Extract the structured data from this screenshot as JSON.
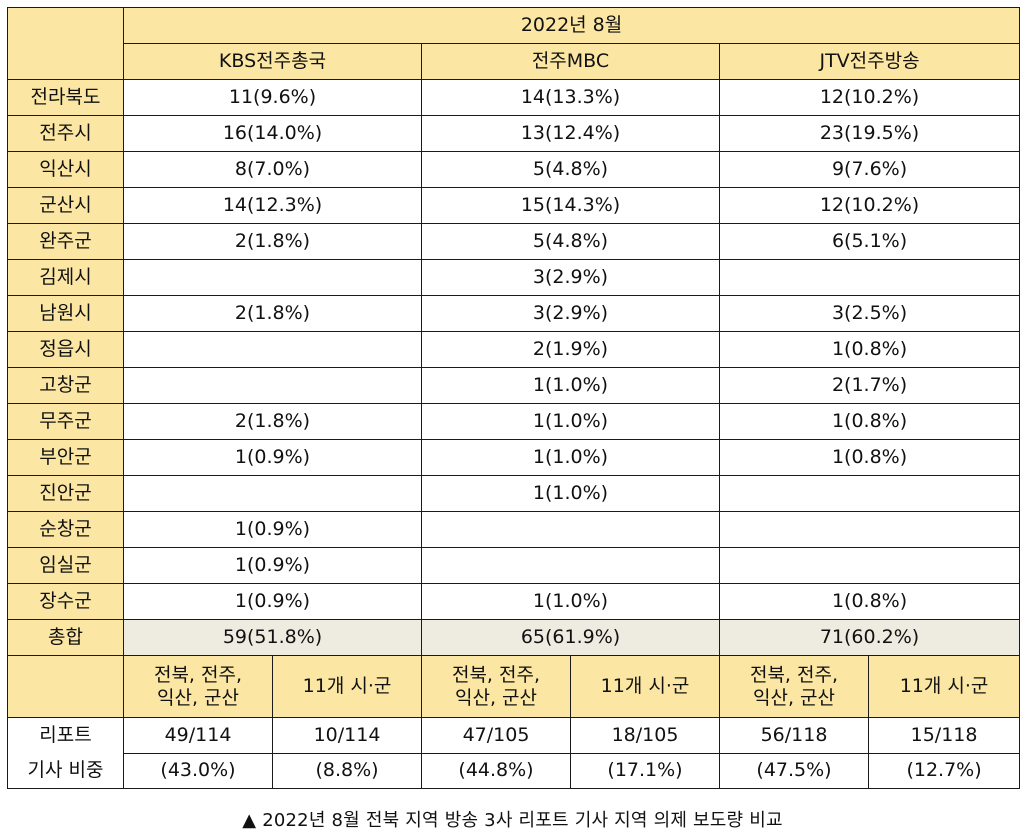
{
  "table": {
    "period": "2022년 8월",
    "broadcasters": [
      "KBS전주총국",
      "전주MBC",
      "JTV전주방송"
    ],
    "rows": [
      {
        "region": "전라북도",
        "values": [
          "11(9.6%)",
          "14(13.3%)",
          "12(10.2%)"
        ]
      },
      {
        "region": "전주시",
        "values": [
          "16(14.0%)",
          "13(12.4%)",
          "23(19.5%)"
        ]
      },
      {
        "region": "익산시",
        "values": [
          "8(7.0%)",
          "5(4.8%)",
          "9(7.6%)"
        ]
      },
      {
        "region": "군산시",
        "values": [
          "14(12.3%)",
          "15(14.3%)",
          "12(10.2%)"
        ]
      },
      {
        "region": "완주군",
        "values": [
          "2(1.8%)",
          "5(4.8%)",
          "6(5.1%)"
        ]
      },
      {
        "region": "김제시",
        "values": [
          "",
          "3(2.9%)",
          ""
        ]
      },
      {
        "region": "남원시",
        "values": [
          "2(1.8%)",
          "3(2.9%)",
          "3(2.5%)"
        ]
      },
      {
        "region": "정읍시",
        "values": [
          "",
          "2(1.9%)",
          "1(0.8%)"
        ]
      },
      {
        "region": "고창군",
        "values": [
          "",
          "1(1.0%)",
          "2(1.7%)"
        ]
      },
      {
        "region": "무주군",
        "values": [
          "2(1.8%)",
          "1(1.0%)",
          "1(0.8%)"
        ]
      },
      {
        "region": "부안군",
        "values": [
          "1(0.9%)",
          "1(1.0%)",
          "1(0.8%)"
        ]
      },
      {
        "region": "진안군",
        "values": [
          "",
          "1(1.0%)",
          ""
        ]
      },
      {
        "region": "순창군",
        "values": [
          "1(0.9%)",
          "",
          ""
        ]
      },
      {
        "region": "임실군",
        "values": [
          "1(0.9%)",
          "",
          ""
        ]
      },
      {
        "region": "장수군",
        "values": [
          "1(0.9%)",
          "1(1.0%)",
          "1(0.8%)"
        ]
      }
    ],
    "total": {
      "label": "총합",
      "values": [
        "59(51.8%)",
        "65(61.9%)",
        "71(60.2%)"
      ]
    },
    "split_header": {
      "group_a_line1": "전북, 전주,",
      "group_a_line2": "익산, 군산",
      "group_b": "11개 시·군"
    },
    "report_share": {
      "label_line1": "리포트",
      "label_line2": "기사 비중",
      "cells": [
        {
          "count": "49/114",
          "pct": "(43.0%)"
        },
        {
          "count": "10/114",
          "pct": "(8.8%)"
        },
        {
          "count": "47/105",
          "pct": "(44.8%)"
        },
        {
          "count": "18/105",
          "pct": "(17.1%)"
        },
        {
          "count": "56/118",
          "pct": "(47.5%)"
        },
        {
          "count": "15/118",
          "pct": "(12.7%)"
        }
      ]
    }
  },
  "caption": "▲ 2022년 8월 전북 지역 방송 3사 리포트 기사 지역 의제 보도량 비교"
}
